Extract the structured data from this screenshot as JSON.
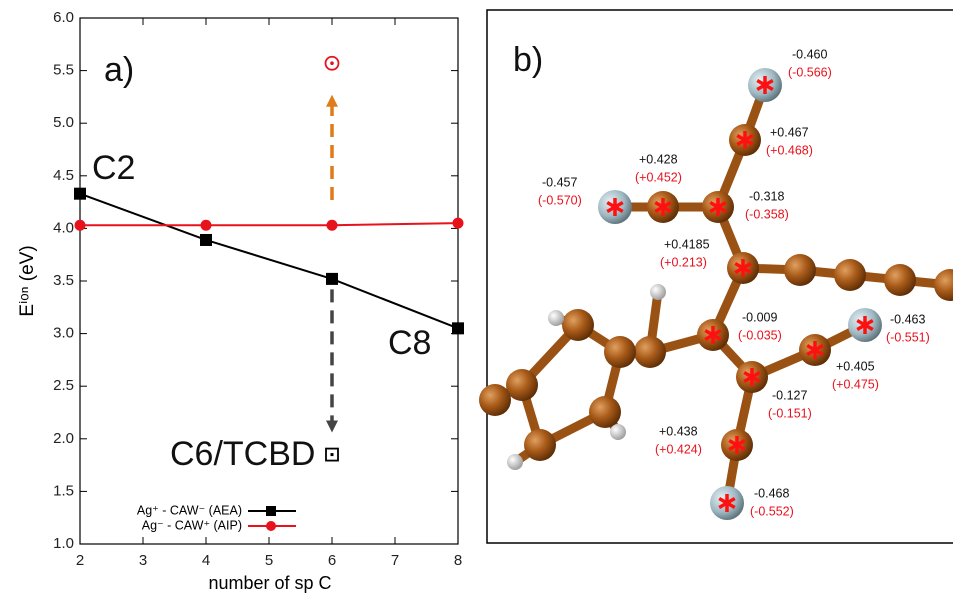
{
  "chart_data": {
    "type": "line",
    "x_label": "number of sp C",
    "y_label": "Eⁱᵒⁿ (eV)",
    "x": [
      2,
      4,
      6,
      8
    ],
    "series": [
      {
        "name": "Ag⁺ - CAW⁻ (AEA)",
        "color": "#000000",
        "marker": "square",
        "values": [
          4.33,
          3.89,
          3.52,
          3.05
        ]
      },
      {
        "name": "Ag⁻ - CAW⁺ (AIP)",
        "color": "#e8121c",
        "marker": "circle",
        "values": [
          4.03,
          4.03,
          4.03,
          4.05
        ]
      }
    ],
    "markers": [
      {
        "x": 6,
        "y": 1.85,
        "color": "#000000",
        "shape": "open-square"
      },
      {
        "x": 6,
        "y": 5.57,
        "color": "#e8121c",
        "shape": "open-circle"
      }
    ],
    "arrows": [
      {
        "x": 6,
        "from": 3.42,
        "to": 2.06,
        "color": "#444444"
      },
      {
        "x": 6,
        "from": 4.27,
        "to": 5.27,
        "color": "#e07b1a"
      }
    ],
    "annotations": [
      "a)",
      "C2",
      "C8",
      "C6/TCBD"
    ],
    "xlim": [
      2,
      8
    ],
    "xticks": [
      2,
      3,
      4,
      5,
      6,
      7,
      8
    ],
    "ylim": [
      1.0,
      6.0
    ],
    "yticks": [
      {
        "value": 1,
        "label": "1.0"
      },
      {
        "value": 1.5,
        "label": "1.5"
      },
      {
        "value": 2,
        "label": "2.0"
      },
      {
        "value": 2.5,
        "label": "2.5"
      },
      {
        "value": 3,
        "label": "3.0"
      },
      {
        "value": 3.5,
        "label": "3.5"
      },
      {
        "value": 4,
        "label": "4.0"
      },
      {
        "value": 4.5,
        "label": "4.5"
      },
      {
        "value": 5,
        "label": "5.0"
      },
      {
        "value": 5.5,
        "label": "5.5"
      },
      {
        "value": 6,
        "label": "6.0"
      }
    ],
    "legend": "lower-left",
    "grid": false
  },
  "panel_b": {
    "label": "b)",
    "charges": [
      {
        "neutral": "-0.460",
        "ion": "(-0.566)"
      },
      {
        "neutral": "+0.467",
        "ion": "(+0.468)"
      },
      {
        "neutral": "+0.428",
        "ion": "(+0.452)"
      },
      {
        "neutral": "-0.457",
        "ion": "(-0.570)"
      },
      {
        "neutral": "-0.318",
        "ion": "(-0.358)"
      },
      {
        "neutral": "+0.4185",
        "ion": "(+0.213)"
      },
      {
        "neutral": "-0.009",
        "ion": "(-0.035)"
      },
      {
        "neutral": "-0.463",
        "ion": "(-0.551)"
      },
      {
        "neutral": "+0.405",
        "ion": "(+0.475)"
      },
      {
        "neutral": "-0.127",
        "ion": "(-0.151)"
      },
      {
        "neutral": "+0.438",
        "ion": "(+0.424)"
      },
      {
        "neutral": "-0.468",
        "ion": "(-0.552)"
      }
    ]
  }
}
